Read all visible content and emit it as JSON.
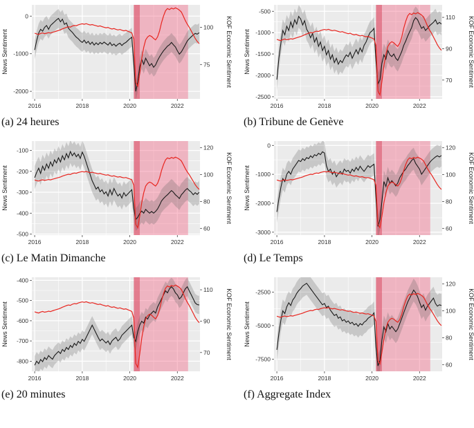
{
  "chart_data": {
    "type": "line",
    "shared": {
      "left_axis_title": "News Sentiment",
      "right_axis_title": "KOF Economic Sentiment",
      "x_start": 2016.0,
      "x_range": [
        2015.88,
        2022.95
      ],
      "x_ticks": [
        2016,
        2018,
        2020,
        2022
      ],
      "shaded_regions": [
        {
          "name": "covid-period",
          "from": 2020.17,
          "to": 2022.45,
          "color": "rgba(243,98,131,0.40)"
        },
        {
          "name": "first-lockdown",
          "from": 2020.17,
          "to": 2020.42,
          "color": "rgba(210,55,80,0.45)"
        }
      ],
      "colors": {
        "news": "#1a1a1a",
        "kof": "#e8251f",
        "band": "rgba(90,90,90,0.25)",
        "plot_bg": "#ebebeb",
        "grid": "#ffffff"
      }
    },
    "kof_series": [
      96,
      95.5,
      95.2,
      95.8,
      96.2,
      95.7,
      96,
      96.4,
      96.1,
      96.6,
      97,
      97.4,
      97.8,
      98.3,
      98.9,
      99.4,
      99.9,
      100.3,
      100.1,
      100.8,
      101.2,
      101,
      101.6,
      102,
      102.3,
      102,
      102.4,
      101.9,
      101.5,
      101.8,
      101.4,
      101,
      100.6,
      100.9,
      100.4,
      100,
      99.6,
      99.9,
      99.2,
      98.8,
      99.1,
      98.6,
      98.2,
      98.5,
      98,
      97.6,
      97.9,
      97.3,
      96.8,
      96.2,
      92,
      63,
      60.5,
      69,
      79,
      86.5,
      91.5,
      93.5,
      94.5,
      93.8,
      92.5,
      91.5,
      93.5,
      97.5,
      103,
      107.5,
      111,
      112.5,
      111.8,
      112.8,
      112.2,
      113,
      112.4,
      111.5,
      110.2,
      107.5,
      104.5,
      102,
      100,
      97.5,
      95,
      92.5,
      90.5,
      89
    ],
    "panels": [
      {
        "id": "a",
        "caption": "(a) 24 heures",
        "left_range": [
          -2200,
          300
        ],
        "left_ticks": [
          0,
          -1000,
          -2000
        ],
        "right_range": [
          52,
          115
        ],
        "right_ticks": [
          100,
          75
        ],
        "band": 250,
        "news": [
          -900,
          -650,
          -450,
          -350,
          -400,
          -300,
          -250,
          -350,
          -250,
          -200,
          -150,
          -100,
          -60,
          -150,
          -80,
          -220,
          -180,
          -320,
          -380,
          -430,
          -500,
          -560,
          -600,
          -660,
          -700,
          -640,
          -720,
          -670,
          -750,
          -690,
          -770,
          -710,
          -760,
          -700,
          -740,
          -690,
          -730,
          -770,
          -700,
          -780,
          -740,
          -800,
          -750,
          -720,
          -780,
          -730,
          -700,
          -650,
          -600,
          -560,
          -1250,
          -2000,
          -1750,
          -1350,
          -1150,
          -1280,
          -1120,
          -1220,
          -1320,
          -1260,
          -1360,
          -1300,
          -1180,
          -1080,
          -1000,
          -920,
          -860,
          -800,
          -760,
          -700,
          -760,
          -820,
          -920,
          -1010,
          -950,
          -860,
          -760,
          -660,
          -600,
          -550,
          -500,
          -460,
          -480,
          -440
        ]
      },
      {
        "id": "b",
        "caption": "(b) Tribune de Genève",
        "left_range": [
          -2550,
          -350
        ],
        "left_ticks": [
          -500,
          -1000,
          -1500,
          -2000,
          -2500
        ],
        "right_range": [
          58,
          118
        ],
        "right_ticks": [
          110,
          90,
          70
        ],
        "band": 260,
        "news": [
          -2100,
          -1600,
          -1250,
          -950,
          -1050,
          -850,
          -950,
          -750,
          -880,
          -700,
          -800,
          -620,
          -680,
          -820,
          -720,
          -920,
          -1000,
          -1120,
          -1020,
          -1220,
          -1120,
          -1320,
          -1220,
          -1420,
          -1320,
          -1520,
          -1420,
          -1620,
          -1520,
          -1700,
          -1600,
          -1740,
          -1650,
          -1700,
          -1600,
          -1520,
          -1560,
          -1460,
          -1600,
          -1500,
          -1400,
          -1500,
          -1360,
          -1450,
          -1300,
          -1220,
          -1100,
          -1000,
          -960,
          -900,
          -1650,
          -2200,
          -2100,
          -1720,
          -1520,
          -1620,
          -1420,
          -1520,
          -1560,
          -1500,
          -1600,
          -1650,
          -1550,
          -1440,
          -1300,
          -1200,
          -1080,
          -980,
          -880,
          -720,
          -650,
          -700,
          -800,
          -900,
          -860,
          -950,
          -900,
          -840,
          -800,
          -760,
          -700,
          -800,
          -760,
          -800
        ]
      },
      {
        "id": "c",
        "caption": "(c) Le Matin Dimanche",
        "left_range": [
          -505,
          -55
        ],
        "left_ticks": [
          -100,
          -200,
          -300,
          -400,
          -500
        ],
        "right_range": [
          55,
          125
        ],
        "right_ticks": [
          120,
          100,
          80,
          60
        ],
        "band": 55,
        "news": [
          -230,
          -205,
          -185,
          -210,
          -175,
          -195,
          -165,
          -185,
          -155,
          -175,
          -145,
          -160,
          -135,
          -155,
          -125,
          -145,
          -115,
          -135,
          -105,
          -125,
          -112,
          -130,
          -118,
          -138,
          -108,
          -128,
          -158,
          -188,
          -215,
          -245,
          -265,
          -285,
          -275,
          -298,
          -288,
          -308,
          -298,
          -318,
          -288,
          -312,
          -282,
          -302,
          -318,
          -308,
          -328,
          -302,
          -318,
          -308,
          -298,
          -288,
          -378,
          -430,
          -420,
          -402,
          -390,
          -400,
          -382,
          -392,
          -400,
          -392,
          -400,
          -392,
          -380,
          -362,
          -342,
          -330,
          -320,
          -312,
          -302,
          -292,
          -300,
          -312,
          -320,
          -330,
          -312,
          -302,
          -290,
          -282,
          -292,
          -300,
          -312,
          -302,
          -310,
          -300
        ]
      },
      {
        "id": "d",
        "caption": "(d) Le Temps",
        "left_range": [
          -3100,
          150
        ],
        "left_ticks": [
          0,
          -1000,
          -2000,
          -3000
        ],
        "right_range": [
          55,
          125
        ],
        "right_ticks": [
          120,
          100,
          80,
          60
        ],
        "band": 380,
        "news": [
          -2300,
          -1850,
          -1450,
          -1150,
          -1250,
          -1000,
          -900,
          -1000,
          -820,
          -720,
          -620,
          -520,
          -560,
          -460,
          -520,
          -420,
          -460,
          -360,
          -420,
          -320,
          -360,
          -270,
          -320,
          -220,
          -260,
          -700,
          -900,
          -820,
          -1000,
          -900,
          -1080,
          -980,
          -900,
          -1000,
          -820,
          -900,
          -860,
          -960,
          -820,
          -900,
          -760,
          -860,
          -720,
          -820,
          -900,
          -800,
          -700,
          -760,
          -700,
          -650,
          -1800,
          -2800,
          -2550,
          -1950,
          -1250,
          -1420,
          -1120,
          -1320,
          -1220,
          -1300,
          -1400,
          -1300,
          -1120,
          -1000,
          -900,
          -820,
          -700,
          -620,
          -520,
          -460,
          -620,
          -720,
          -820,
          -1000,
          -900,
          -800,
          -700,
          -600,
          -520,
          -460,
          -400,
          -360,
          -400,
          -350
        ]
      },
      {
        "id": "e",
        "caption": "(e) 20 minutes",
        "left_range": [
          -850,
          -385
        ],
        "left_ticks": [
          -400,
          -500,
          -600,
          -700,
          -800
        ],
        "right_range": [
          58,
          118
        ],
        "right_ticks": [
          110,
          90,
          70
        ],
        "band": 45,
        "news": [
          -820,
          -800,
          -812,
          -792,
          -802,
          -782,
          -792,
          -772,
          -782,
          -790,
          -772,
          -762,
          -752,
          -762,
          -742,
          -752,
          -732,
          -742,
          -722,
          -732,
          -712,
          -722,
          -702,
          -712,
          -692,
          -702,
          -682,
          -662,
          -642,
          -622,
          -642,
          -662,
          -682,
          -700,
          -690,
          -700,
          -710,
          -700,
          -718,
          -700,
          -690,
          -682,
          -700,
          -690,
          -672,
          -662,
          -652,
          -642,
          -632,
          -622,
          -682,
          -702,
          -652,
          -622,
          -602,
          -612,
          -582,
          -592,
          -572,
          -562,
          -552,
          -562,
          -532,
          -512,
          -492,
          -472,
          -452,
          -462,
          -442,
          -432,
          -442,
          -462,
          -472,
          -492,
          -482,
          -462,
          -442,
          -432,
          -452,
          -472,
          -492,
          -512,
          -520,
          -522
        ]
      },
      {
        "id": "f",
        "caption": "(f) Aggregate Index",
        "left_range": [
          -8400,
          -1400
        ],
        "left_ticks": [
          -2500,
          -5000,
          -7500
        ],
        "right_range": [
          55,
          125
        ],
        "right_ticks": [
          120,
          100,
          80,
          60
        ],
        "band": 850,
        "news": [
          -6800,
          -5600,
          -4600,
          -3900,
          -4100,
          -3600,
          -3300,
          -3500,
          -3100,
          -2900,
          -2600,
          -2400,
          -2250,
          -2050,
          -1950,
          -1850,
          -2050,
          -2250,
          -2450,
          -2650,
          -2850,
          -3050,
          -3250,
          -3450,
          -3350,
          -3650,
          -3550,
          -3850,
          -4050,
          -4250,
          -4150,
          -4450,
          -4350,
          -4650,
          -4550,
          -4750,
          -4650,
          -4850,
          -4750,
          -4950,
          -4850,
          -5050,
          -4850,
          -4950,
          -4750,
          -4650,
          -4450,
          -4350,
          -4250,
          -4050,
          -6600,
          -8000,
          -7600,
          -6100,
          -5100,
          -5450,
          -4850,
          -5250,
          -5050,
          -5250,
          -5450,
          -5250,
          -4850,
          -4450,
          -4050,
          -3650,
          -3250,
          -2950,
          -2650,
          -2350,
          -2550,
          -2850,
          -3250,
          -3650,
          -3450,
          -3850,
          -3550,
          -3350,
          -3150,
          -2950,
          -3350,
          -3550,
          -3450,
          -3500
        ]
      }
    ]
  }
}
